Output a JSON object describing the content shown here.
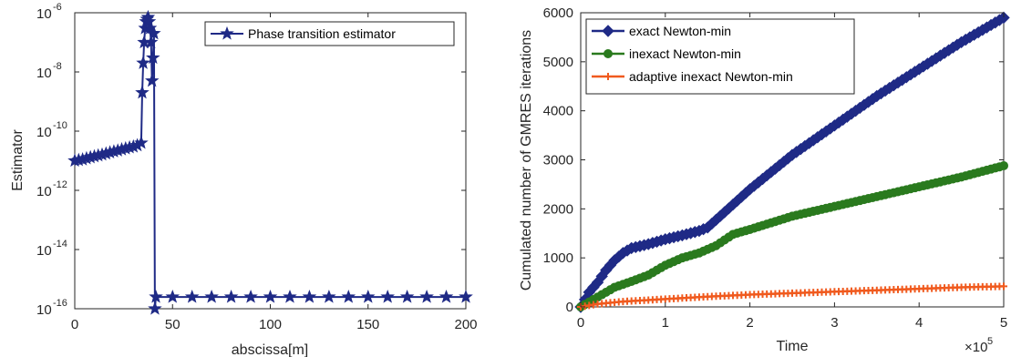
{
  "chart_data": [
    {
      "type": "line",
      "xlabel": "abscissa[m]",
      "ylabel": "Estimator",
      "xlim": [
        0,
        200
      ],
      "ylim": [
        1e-16,
        1e-06
      ],
      "y_scale": "log",
      "x_ticks": [
        "0",
        "50",
        "100",
        "150",
        "200"
      ],
      "y_ticks": [
        {
          "base": "10",
          "exp": "-16"
        },
        {
          "base": "10",
          "exp": "-14"
        },
        {
          "base": "10",
          "exp": "-12"
        },
        {
          "base": "10",
          "exp": "-10"
        },
        {
          "base": "10",
          "exp": "-8"
        },
        {
          "base": "10",
          "exp": "-6"
        }
      ],
      "legend_position": "top-right",
      "series": [
        {
          "name": "Phase transition estimator",
          "color": "#1f2a86",
          "marker": "star",
          "x": [
            0,
            2,
            4,
            6,
            8,
            10,
            12,
            14,
            16,
            18,
            20,
            22,
            24,
            26,
            28,
            30,
            32,
            34,
            34.5,
            35,
            35.5,
            36,
            36.5,
            37,
            37.5,
            38,
            38.5,
            39,
            39.5,
            40,
            40.5,
            41,
            41.5,
            50,
            60,
            70,
            80,
            90,
            100,
            110,
            120,
            130,
            140,
            150,
            160,
            170,
            180,
            190,
            200
          ],
          "y": [
            1e-11,
            1.05e-11,
            1.1e-11,
            1.2e-11,
            1.3e-11,
            1.4e-11,
            1.5e-11,
            1.6e-11,
            1.75e-11,
            1.9e-11,
            2.05e-11,
            2.2e-11,
            2.4e-11,
            2.6e-11,
            2.8e-11,
            3e-11,
            3.3e-11,
            4e-11,
            2e-09,
            2e-08,
            1e-07,
            3e-07,
            5e-07,
            6e-07,
            7e-07,
            5e-07,
            3e-07,
            1e-07,
            5e-09,
            3e-08,
            2e-07,
            1e-16,
            2.5e-16,
            2.5e-16,
            2.5e-16,
            2.5e-16,
            2.5e-16,
            2.5e-16,
            2.5e-16,
            2.5e-16,
            2.5e-16,
            2.5e-16,
            2.5e-16,
            2.5e-16,
            2.5e-16,
            2.5e-16,
            2.5e-16,
            2.5e-16,
            2.5e-16
          ]
        }
      ]
    },
    {
      "type": "line",
      "xlabel": "Time",
      "ylabel": "Cumulated number of GMRES iterations",
      "xlim": [
        0,
        500000
      ],
      "ylim": [
        0,
        6000
      ],
      "x_ticks": [
        "0",
        "1",
        "2",
        "3",
        "4",
        "5"
      ],
      "y_ticks": [
        "0",
        "1000",
        "2000",
        "3000",
        "4000",
        "5000",
        "6000"
      ],
      "x_multiplier": {
        "base": "×10",
        "exp": "5"
      },
      "legend_position": "top-left",
      "series": [
        {
          "name": "exact Newton-min",
          "color": "#1f2a86",
          "marker": "diamond",
          "x": [
            0,
            10000,
            20000,
            30000,
            40000,
            50000,
            60000,
            80000,
            100000,
            120000,
            140000,
            150000,
            200000,
            250000,
            300000,
            350000,
            400000,
            450000,
            500000
          ],
          "y": [
            0,
            300,
            500,
            750,
            950,
            1100,
            1200,
            1280,
            1380,
            1460,
            1550,
            1620,
            2400,
            3100,
            3700,
            4300,
            4850,
            5400,
            5900
          ]
        },
        {
          "name": "inexact Newton-min",
          "color": "#2a7a1e",
          "marker": "circle",
          "x": [
            0,
            10000,
            20000,
            30000,
            40000,
            60000,
            80000,
            100000,
            120000,
            140000,
            160000,
            180000,
            200000,
            250000,
            300000,
            350000,
            400000,
            450000,
            500000
          ],
          "y": [
            0,
            100,
            200,
            300,
            400,
            520,
            650,
            850,
            1000,
            1100,
            1250,
            1480,
            1580,
            1850,
            2050,
            2250,
            2450,
            2650,
            2880
          ]
        },
        {
          "name": "adaptive inexact Newton-min",
          "color": "#f05a1e",
          "marker": "plus",
          "x": [
            0,
            20000,
            50000,
            100000,
            150000,
            200000,
            250000,
            300000,
            350000,
            400000,
            450000,
            500000
          ],
          "y": [
            0,
            60,
            110,
            160,
            210,
            250,
            280,
            310,
            340,
            370,
            400,
            420
          ]
        }
      ]
    }
  ]
}
